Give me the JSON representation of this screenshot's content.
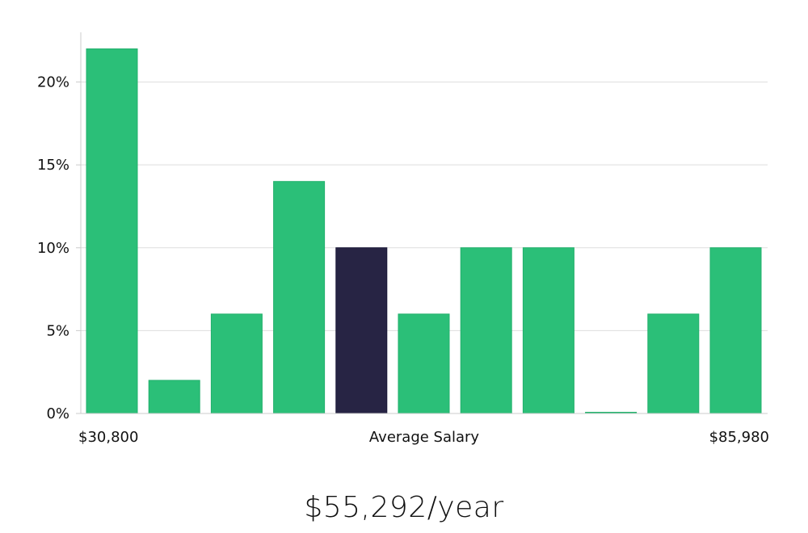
{
  "chart_data": {
    "type": "bar",
    "title": "",
    "xlabel": "Average Salary",
    "ylabel": "",
    "x_min_label": "$30,800",
    "x_max_label": "$85,980",
    "ylim": [
      0,
      23
    ],
    "yticks": [
      {
        "value": 0,
        "label": "0%"
      },
      {
        "value": 5,
        "label": "5%"
      },
      {
        "value": 10,
        "label": "10%"
      },
      {
        "value": 15,
        "label": "15%"
      },
      {
        "value": 20,
        "label": "20%"
      }
    ],
    "values": [
      22,
      2,
      6,
      14,
      10,
      6,
      10,
      10,
      0,
      6,
      10
    ],
    "highlight_index": 4,
    "grid": true,
    "colors": {
      "bar": "#2bbf78",
      "bar_stroke": "#22b06c",
      "highlight": "#272444",
      "highlight_stroke": "#1a1838",
      "grid": "#dddddd",
      "axis": "#cccccc"
    }
  },
  "average_salary": "$55,292/year"
}
